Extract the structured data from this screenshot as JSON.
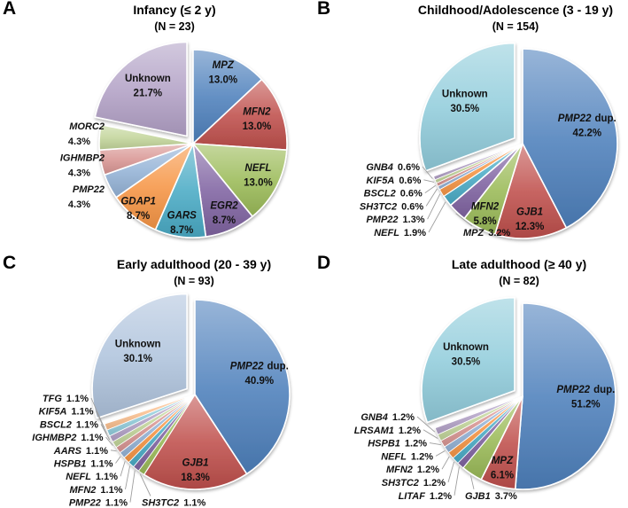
{
  "figure": {
    "background": "#FFFFFF",
    "description": "Four pie charts of genetic diagnoses by age at onset",
    "leader_line_color": "#9E9E9E"
  },
  "chart_data": [
    {
      "type": "pie",
      "panel": "A",
      "title": "Infancy (≤ 2 y)",
      "subtitle": "(N = 23)",
      "legend_position": "none",
      "slices": [
        {
          "name": "MPZ",
          "value": 13.0,
          "label": "13.0%",
          "color": "#4F81BD",
          "label_placement": "inside",
          "italic": true
        },
        {
          "name": "MFN2",
          "value": 13.0,
          "label": "13.0%",
          "color": "#C0504D",
          "label_placement": "inside",
          "italic": true
        },
        {
          "name": "NEFL",
          "value": 13.0,
          "label": "13.0%",
          "color": "#9BBB59",
          "label_placement": "inside",
          "italic": true
        },
        {
          "name": "EGR2",
          "value": 8.7,
          "label": "8.7%",
          "color": "#8064A2",
          "label_placement": "inside",
          "italic": true
        },
        {
          "name": "GARS",
          "value": 8.7,
          "label": "8.7%",
          "color": "#4BACC6",
          "label_placement": "inside",
          "italic": true
        },
        {
          "name": "GDAP1",
          "value": 8.7,
          "label": "8.7%",
          "color": "#F79646",
          "label_placement": "inside",
          "italic": true
        },
        {
          "name": "PMP22",
          "value": 4.3,
          "label": "4.3%",
          "color": "#95B3D7",
          "label_placement": "outside",
          "italic": true
        },
        {
          "name": "IGHMBP2",
          "value": 4.3,
          "label": "4.3%",
          "color": "#D99694",
          "label_placement": "outside",
          "italic": true
        },
        {
          "name": "MORC2",
          "value": 4.3,
          "label": "4.3%",
          "color": "#C3D69B",
          "label_placement": "outside",
          "italic": true
        },
        {
          "name": "Unknown",
          "value": 21.7,
          "label": "21.7%",
          "color": "#B3A2C7",
          "label_placement": "inside",
          "italic": false,
          "exploded": true
        }
      ]
    },
    {
      "type": "pie",
      "panel": "B",
      "title": "Childhood/Adolescence (3 - 19 y)",
      "subtitle": "(N = 154)",
      "legend_position": "none",
      "slices": [
        {
          "name": "PMP22",
          "suffix": "dup.",
          "value": 42.2,
          "label": "42.2%",
          "color": "#4F81BD",
          "label_placement": "inside",
          "italic": true
        },
        {
          "name": "GJB1",
          "value": 12.3,
          "label": "12.3%",
          "color": "#C0504D",
          "label_placement": "inside",
          "italic": true
        },
        {
          "name": "MFN2",
          "value": 5.8,
          "label": "5.8%",
          "color": "#9BBB59",
          "label_placement": "inside",
          "italic": true
        },
        {
          "name": "MPZ",
          "value": 3.2,
          "label": "3.2%",
          "color": "#8064A2",
          "label_placement": "outside",
          "italic": true
        },
        {
          "name": "NEFL",
          "value": 1.9,
          "label": "1.9%",
          "color": "#4BACC6",
          "label_placement": "outside",
          "italic": true
        },
        {
          "name": "PMP22",
          "value": 1.3,
          "label": "1.3%",
          "color": "#F79646",
          "label_placement": "outside",
          "italic": true
        },
        {
          "name": "SH3TC2",
          "value": 0.6,
          "label": "0.6%",
          "color": "#95B3D7",
          "label_placement": "outside",
          "italic": true
        },
        {
          "name": "BSCL2",
          "value": 0.6,
          "label": "0.6%",
          "color": "#D99694",
          "label_placement": "outside",
          "italic": true
        },
        {
          "name": "KIF5A",
          "value": 0.6,
          "label": "0.6%",
          "color": "#C3D69B",
          "label_placement": "outside",
          "italic": true
        },
        {
          "name": "GNB4",
          "value": 0.6,
          "label": "0.6%",
          "color": "#B3A2C7",
          "label_placement": "outside",
          "italic": true
        },
        {
          "name": "Unknown",
          "value": 30.5,
          "label": "30.5%",
          "color": "#92CDDC",
          "label_placement": "inside",
          "italic": false,
          "exploded": true
        }
      ]
    },
    {
      "type": "pie",
      "panel": "C",
      "title": "Early adulthood (20 - 39 y)",
      "subtitle": "(N = 93)",
      "legend_position": "none",
      "slices": [
        {
          "name": "PMP22",
          "suffix": "dup.",
          "value": 40.9,
          "label": "40.9%",
          "color": "#4F81BD",
          "label_placement": "inside",
          "italic": true
        },
        {
          "name": "GJB1",
          "value": 18.3,
          "label": "18.3%",
          "color": "#C0504D",
          "label_placement": "inside",
          "italic": true
        },
        {
          "name": "SH3TC2",
          "value": 1.1,
          "label": "1.1%",
          "color": "#9BBB59",
          "label_placement": "outside",
          "italic": true
        },
        {
          "name": "PMP22",
          "value": 1.1,
          "label": "1.1%",
          "color": "#8064A2",
          "label_placement": "outside",
          "italic": true
        },
        {
          "name": "MFN2",
          "value": 1.1,
          "label": "1.1%",
          "color": "#4BACC6",
          "label_placement": "outside",
          "italic": true
        },
        {
          "name": "NEFL",
          "value": 1.1,
          "label": "1.1%",
          "color": "#F79646",
          "label_placement": "outside",
          "italic": true
        },
        {
          "name": "HSPB1",
          "value": 1.1,
          "label": "1.1%",
          "color": "#95B3D7",
          "label_placement": "outside",
          "italic": true
        },
        {
          "name": "AARS",
          "value": 1.1,
          "label": "1.1%",
          "color": "#D99694",
          "label_placement": "outside",
          "italic": true
        },
        {
          "name": "IGHMBP2",
          "value": 1.1,
          "label": "1.1%",
          "color": "#C3D69B",
          "label_placement": "outside",
          "italic": true
        },
        {
          "name": "BSCL2",
          "value": 1.1,
          "label": "1.1%",
          "color": "#B3A2C7",
          "label_placement": "outside",
          "italic": true
        },
        {
          "name": "KIF5A",
          "value": 1.1,
          "label": "1.1%",
          "color": "#92CDDC",
          "label_placement": "outside",
          "italic": true
        },
        {
          "name": "TFG",
          "value": 1.1,
          "label": "1.1%",
          "color": "#FAC090",
          "label_placement": "outside",
          "italic": true
        },
        {
          "name": "Unknown",
          "value": 30.1,
          "label": "30.1%",
          "color": "#B0C4DE",
          "label_placement": "inside",
          "italic": false,
          "exploded": true
        }
      ]
    },
    {
      "type": "pie",
      "panel": "D",
      "title": "Late adulthood (≥ 40 y)",
      "subtitle": "(N = 82)",
      "legend_position": "none",
      "slices": [
        {
          "name": "PMP22",
          "suffix": "dup.",
          "value": 51.2,
          "label": "51.2%",
          "color": "#4F81BD",
          "label_placement": "inside",
          "italic": true
        },
        {
          "name": "MPZ",
          "value": 6.1,
          "label": "6.1%",
          "color": "#C0504D",
          "label_placement": "inside",
          "italic": true
        },
        {
          "name": "GJB1",
          "value": 3.7,
          "label": "3.7%",
          "color": "#9BBB59",
          "label_placement": "outside",
          "italic": true
        },
        {
          "name": "LITAF",
          "value": 1.2,
          "label": "1.2%",
          "color": "#8064A2",
          "label_placement": "outside",
          "italic": true
        },
        {
          "name": "SH3TC2",
          "value": 1.2,
          "label": "1.2%",
          "color": "#4BACC6",
          "label_placement": "outside",
          "italic": true
        },
        {
          "name": "MFN2",
          "value": 1.2,
          "label": "1.2%",
          "color": "#F79646",
          "label_placement": "outside",
          "italic": true
        },
        {
          "name": "NEFL",
          "value": 1.2,
          "label": "1.2%",
          "color": "#95B3D7",
          "label_placement": "outside",
          "italic": true
        },
        {
          "name": "HSPB1",
          "value": 1.2,
          "label": "1.2%",
          "color": "#D99694",
          "label_placement": "outside",
          "italic": true
        },
        {
          "name": "LRSAM1",
          "value": 1.2,
          "label": "1.2%",
          "color": "#C3D69B",
          "label_placement": "outside",
          "italic": true
        },
        {
          "name": "GNB4",
          "value": 1.2,
          "label": "1.2%",
          "color": "#B3A2C7",
          "label_placement": "outside",
          "italic": true
        },
        {
          "name": "Unknown",
          "value": 30.5,
          "label": "30.5%",
          "color": "#92CDDC",
          "label_placement": "inside",
          "italic": false,
          "exploded": true
        }
      ]
    }
  ]
}
